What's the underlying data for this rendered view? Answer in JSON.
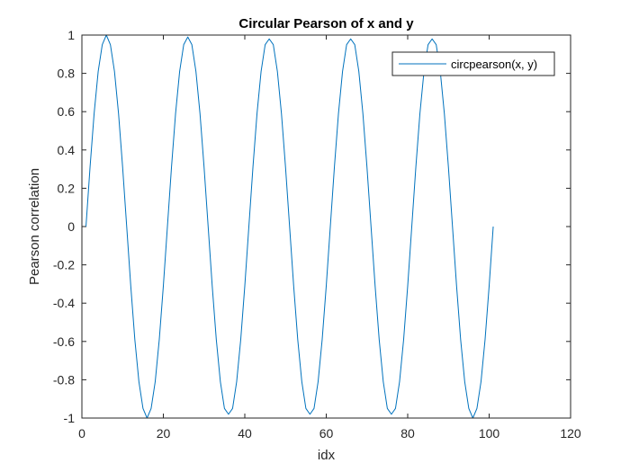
{
  "chart_data": {
    "type": "line",
    "title": "Circular Pearson of x and y",
    "xlabel": "idx",
    "ylabel": "Pearson correlation",
    "xlim": [
      0,
      120
    ],
    "ylim": [
      -1,
      1
    ],
    "x_ticks": [
      0,
      20,
      40,
      60,
      80,
      100,
      120
    ],
    "y_ticks": [
      -1,
      -0.8,
      -0.6,
      -0.4,
      -0.2,
      0,
      0.2,
      0.4,
      0.6,
      0.8,
      1
    ],
    "x_tick_labels": [
      "0",
      "20",
      "40",
      "60",
      "80",
      "100",
      "120"
    ],
    "y_tick_labels": [
      "-1",
      "-0.8",
      "-0.6",
      "-0.4",
      "-0.2",
      "0",
      "0.2",
      "0.4",
      "0.6",
      "0.8",
      "1"
    ],
    "grid": false,
    "box": true,
    "legend_position": "top-right",
    "colors": {
      "series": "#0072BD",
      "axes": "#262626",
      "background": "#ffffff"
    },
    "series": [
      {
        "name": "circpearson(x, y)",
        "x": [
          1,
          2,
          3,
          4,
          5,
          6,
          7,
          8,
          9,
          10,
          11,
          12,
          13,
          14,
          15,
          16,
          17,
          18,
          19,
          20,
          21,
          22,
          23,
          24,
          25,
          26,
          27,
          28,
          29,
          30,
          31,
          32,
          33,
          34,
          35,
          36,
          37,
          38,
          39,
          40,
          41,
          42,
          43,
          44,
          45,
          46,
          47,
          48,
          49,
          50,
          51,
          52,
          53,
          54,
          55,
          56,
          57,
          58,
          59,
          60,
          61,
          62,
          63,
          64,
          65,
          66,
          67,
          68,
          69,
          70,
          71,
          72,
          73,
          74,
          75,
          76,
          77,
          78,
          79,
          80,
          81,
          82,
          83,
          84,
          85,
          86,
          87,
          88,
          89,
          90,
          91,
          92,
          93,
          94,
          95,
          96,
          97,
          98,
          99,
          100,
          101
        ],
        "y": [
          0.0,
          0.31,
          0.59,
          0.81,
          0.95,
          1.0,
          0.95,
          0.81,
          0.59,
          0.31,
          0.0,
          -0.31,
          -0.59,
          -0.81,
          -0.95,
          -1.0,
          -0.95,
          -0.81,
          -0.59,
          -0.31,
          0.0,
          0.31,
          0.59,
          0.81,
          0.95,
          0.99,
          0.95,
          0.81,
          0.59,
          0.31,
          0.0,
          -0.31,
          -0.59,
          -0.81,
          -0.95,
          -0.98,
          -0.95,
          -0.81,
          -0.59,
          -0.31,
          0.0,
          0.31,
          0.59,
          0.81,
          0.95,
          0.98,
          0.95,
          0.81,
          0.59,
          0.31,
          0.0,
          -0.31,
          -0.59,
          -0.81,
          -0.95,
          -0.98,
          -0.95,
          -0.81,
          -0.59,
          -0.31,
          0.0,
          0.31,
          0.59,
          0.81,
          0.95,
          0.98,
          0.95,
          0.81,
          0.59,
          0.31,
          0.0,
          -0.31,
          -0.59,
          -0.81,
          -0.95,
          -0.98,
          -0.95,
          -0.81,
          -0.59,
          -0.31,
          0.0,
          0.31,
          0.59,
          0.81,
          0.95,
          0.98,
          0.95,
          0.81,
          0.59,
          0.31,
          0.0,
          -0.31,
          -0.59,
          -0.81,
          -0.95,
          -1.0,
          -0.95,
          -0.81,
          -0.59,
          -0.31,
          0.0
        ]
      }
    ]
  }
}
